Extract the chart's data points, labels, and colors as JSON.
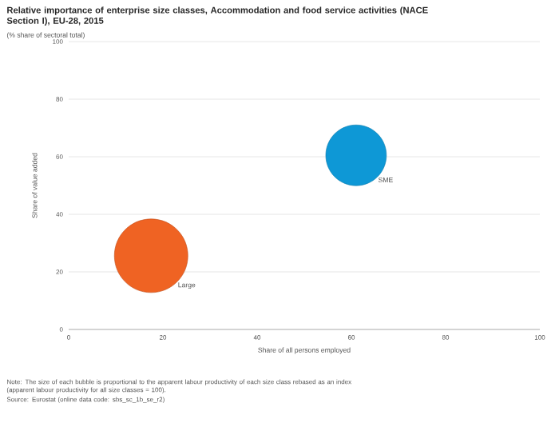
{
  "chart_data": {
    "type": "bubble",
    "title": "Relative importance of enterprise size classes, Accommodation and food service activities (NACE Section I), EU-28, 2015",
    "subtitle": "(% share of sectoral total)",
    "xlabel": "Share of all persons employed",
    "ylabel": "Share of value added",
    "series": [
      {
        "name": "SME",
        "color": "#0e98d6",
        "x": [
          61
        ],
        "values": [
          60.5
        ],
        "sizes": [
          0.68
        ]
      },
      {
        "name": "Large",
        "color": "#ef6323",
        "x": [
          17.5
        ],
        "values": [
          25.6
        ],
        "sizes": [
          1
        ]
      }
    ],
    "xlim": [
      0,
      100
    ],
    "ylim": [
      0,
      100
    ],
    "xticks": [
      0,
      20,
      40,
      60,
      80,
      100
    ],
    "yticks": [
      0,
      20,
      40,
      60,
      80,
      100
    ],
    "grid": "y",
    "legend": false,
    "annotations": [
      "Note: The size of each bubble is proportional to the apparent labour productivity of each size class rebased as an index (apparent labour productivity for all size classes = 100).",
      "Source: Eurostat (online data code: sbs_sc_1b_se_r2)"
    ]
  }
}
